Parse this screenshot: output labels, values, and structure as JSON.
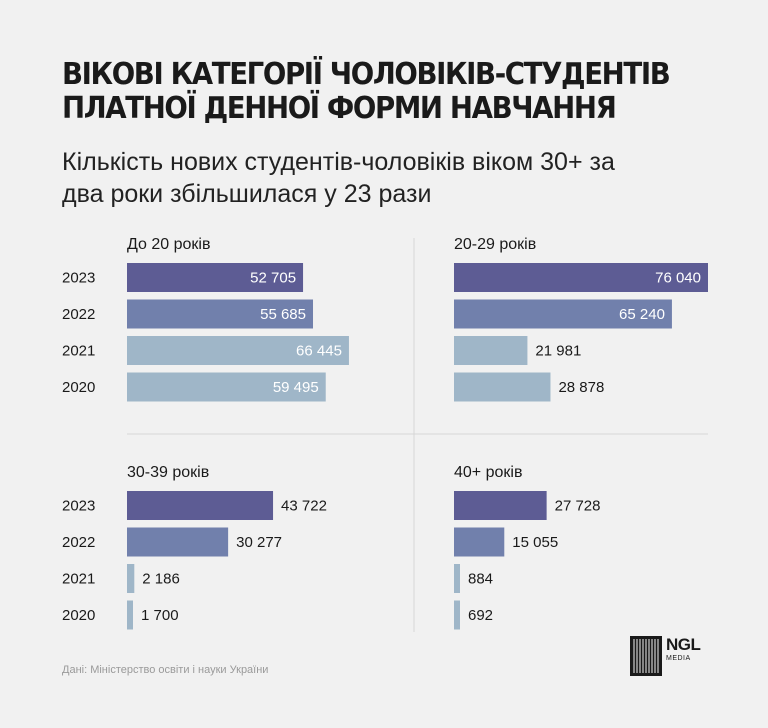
{
  "title": "ВІКОВІ КАТЕГОРІЇ ЧОЛОВІКІВ-СТУДЕНТІВ\nПЛАТНОЇ ДЕННОЇ ФОРМИ НАВЧАННЯ",
  "subtitle": "Кількість нових студентів-чоловіків віком 30+ за\nдва роки збільшилася у 23 рази",
  "source": "Дані: Міністерство освіти і науки України",
  "logo": {
    "main": "NGL",
    "sub": "MEDIA"
  },
  "colors": {
    "dark": "#5d5c94",
    "mid": "#7180ac",
    "light": "#9fb6c8",
    "divider": "#d6d6d6"
  },
  "chart_data": [
    {
      "type": "bar",
      "title": "До 20 років",
      "categories": [
        "2023",
        "2022",
        "2021",
        "2020"
      ],
      "values": [
        52705,
        55685,
        66445,
        59495
      ],
      "labels": [
        "52 705",
        "55 685",
        "66 445",
        "59 495"
      ]
    },
    {
      "type": "bar",
      "title": "20-29 років",
      "categories": [
        "2023",
        "2022",
        "2021",
        "2020"
      ],
      "values": [
        76040,
        65240,
        21981,
        28878
      ],
      "labels": [
        "76 040",
        "65 240",
        "21 981",
        "28 878"
      ]
    },
    {
      "type": "bar",
      "title": "30-39 років",
      "categories": [
        "2023",
        "2022",
        "2021",
        "2020"
      ],
      "values": [
        43722,
        30277,
        2186,
        1700
      ],
      "labels": [
        "43 722",
        "30 277",
        "2 186",
        "1 700"
      ]
    },
    {
      "type": "bar",
      "title": "40+ років",
      "categories": [
        "2023",
        "2022",
        "2021",
        "2020"
      ],
      "values": [
        27728,
        15055,
        884,
        692
      ],
      "labels": [
        "27 728",
        "15 055",
        "884",
        "692"
      ]
    }
  ]
}
